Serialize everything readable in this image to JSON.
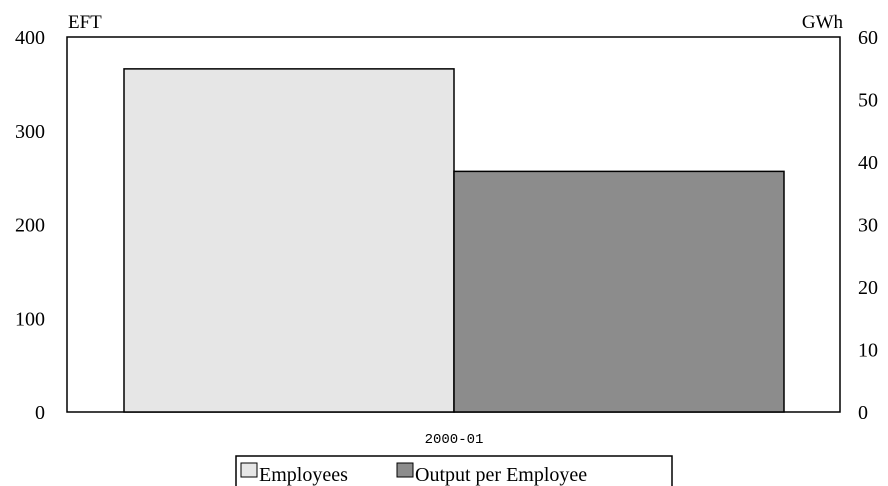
{
  "chart_data": {
    "type": "bar",
    "categories": [
      "2000-01"
    ],
    "series": [
      {
        "name": "Employees",
        "axis": "left",
        "color": "#e6e6e6",
        "values": [
          366
        ]
      },
      {
        "name": "Output per Employee",
        "axis": "right",
        "color": "#8c8c8c",
        "values": [
          38.5
        ]
      }
    ],
    "left_axis": {
      "unit_label": "EFT",
      "ylim": [
        0,
        400
      ],
      "ticks": [
        0,
        100,
        200,
        300,
        400
      ]
    },
    "right_axis": {
      "unit_label": "GWh",
      "ylim": [
        0,
        60
      ],
      "ticks": [
        0,
        10,
        20,
        30,
        40,
        50,
        60
      ]
    },
    "grid": false,
    "legend_position": "bottom"
  }
}
